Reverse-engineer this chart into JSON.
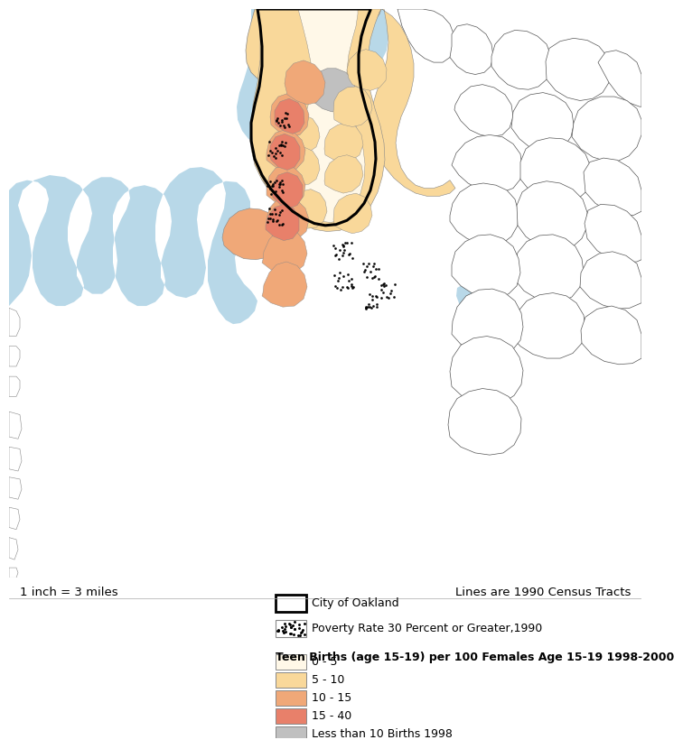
{
  "scale_text": "1 inch = 3 miles",
  "census_text": "Lines are 1990 Census Tracts",
  "legend_title": "Teen Births (age 15-19) per 100 Females Age 15-19 1998-2000",
  "legend_items": [
    {
      "label": "0 - 5",
      "color": "#FFF8E8"
    },
    {
      "label": "5 - 10",
      "color": "#F9D89A"
    },
    {
      "label": "10 - 15",
      "color": "#F0A878"
    },
    {
      "label": "15 - 40",
      "color": "#E8806A"
    },
    {
      "label": "Less than 10 Births 1998",
      "color": "#C0C0C0"
    }
  ],
  "oakland_label": "City of Oakland",
  "poverty_label": "Poverty Rate 30 Percent or Greater,1990",
  "water_color": "#B8D8E8",
  "background_color": "#FFFFFF",
  "border_dark": "#333333",
  "border_light": "#888888",
  "border_medium": "#555555"
}
